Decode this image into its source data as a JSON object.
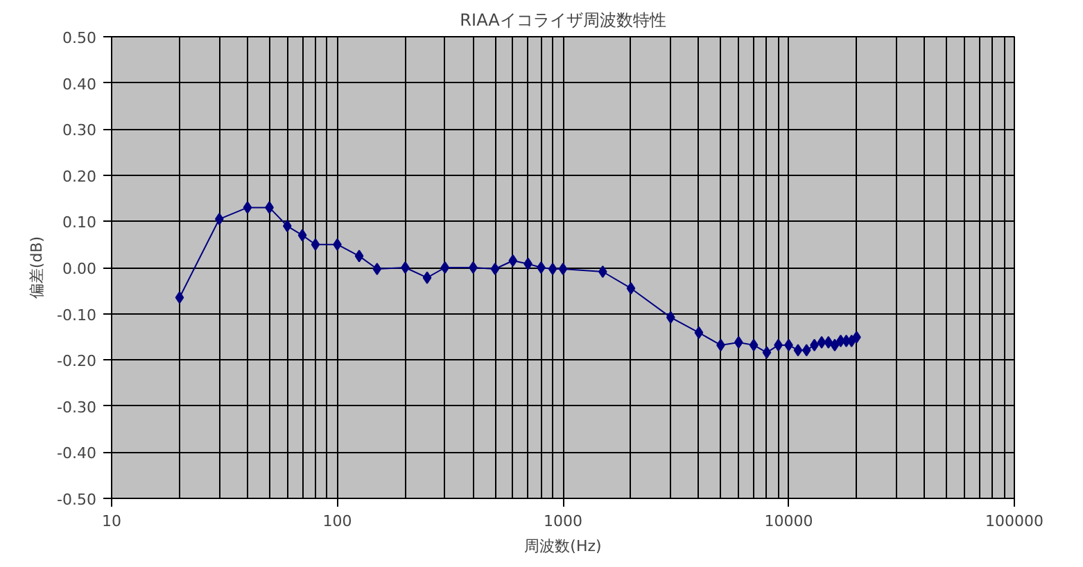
{
  "chart_data": {
    "type": "line",
    "title": "RIAAイコライザ周波数特性",
    "xlabel": "周波数(Hz)",
    "ylabel": "偏差(dB)",
    "log": "x",
    "grid": true,
    "marker": "diamond",
    "line_style": "solid",
    "xlim": [
      10,
      100000
    ],
    "xticks": [
      10,
      100,
      1000,
      10000,
      100000
    ],
    "ylim": [
      -0.5,
      0.5
    ],
    "yticks": [
      {
        "value": -0.5,
        "label": "-0.50"
      },
      {
        "value": -0.4,
        "label": "-0.40"
      },
      {
        "value": -0.3,
        "label": "-0.30"
      },
      {
        "value": -0.2,
        "label": "-0.20"
      },
      {
        "value": -0.1,
        "label": "-0.10"
      },
      {
        "value": 0,
        "label": "0.00"
      },
      {
        "value": 0.1,
        "label": "0.10"
      },
      {
        "value": 0.2,
        "label": "0.20"
      },
      {
        "value": 0.3,
        "label": "0.30"
      },
      {
        "value": 0.4,
        "label": "0.40"
      },
      {
        "value": 0.5,
        "label": "0.50"
      }
    ],
    "x": [
      20,
      30,
      40,
      50,
      60,
      70,
      80,
      100,
      125,
      150,
      200,
      250,
      300,
      400,
      500,
      600,
      700,
      800,
      900,
      1000,
      1500,
      2000,
      3000,
      4000,
      5000,
      6000,
      7000,
      8000,
      9000,
      10000,
      11000,
      12000,
      13000,
      14000,
      15000,
      16000,
      17000,
      18000,
      19000,
      20000
    ],
    "series": [
      {
        "color": "#000080",
        "values": [
          -0.065,
          0.105,
          0.13,
          0.13,
          0.09,
          0.07,
          0.05,
          0.05,
          0.025,
          -0.003,
          0.0,
          -0.022,
          0.0,
          0.0,
          -0.003,
          0.015,
          0.008,
          0.0,
          -0.003,
          -0.003,
          -0.009,
          -0.045,
          -0.108,
          -0.141,
          -0.168,
          -0.162,
          -0.168,
          -0.184,
          -0.168,
          -0.168,
          -0.179,
          -0.179,
          -0.168,
          -0.162,
          -0.162,
          -0.168,
          -0.159,
          -0.159,
          -0.159,
          -0.151
        ]
      }
    ]
  }
}
